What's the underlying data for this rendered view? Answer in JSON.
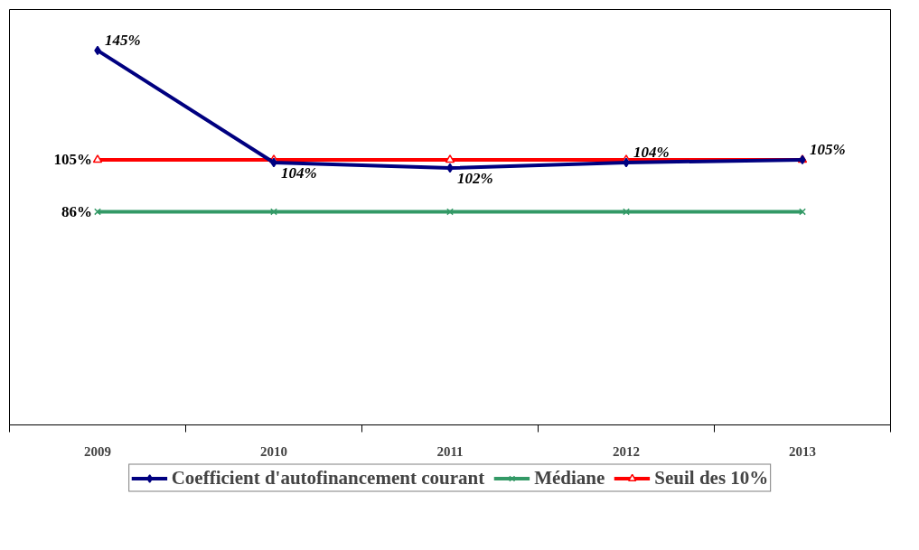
{
  "chart_data": {
    "type": "line",
    "categories": [
      "2009",
      "2010",
      "2011",
      "2012",
      "2013"
    ],
    "ylim": [
      8,
      160
    ],
    "tick_labels": "x",
    "grid": false,
    "legend": "bottom",
    "line_style": "solid",
    "series": [
      {
        "name": "Coefficient d'autofinancement courant",
        "color": "#000080",
        "marker": "diamond",
        "values": [
          145,
          104,
          102,
          104,
          105
        ],
        "value_labels": [
          "145%",
          "104%",
          "102%",
          "104%",
          "105%"
        ]
      },
      {
        "name": "Médiane",
        "color": "#339966",
        "marker": "cross",
        "values": [
          86,
          86,
          86,
          86,
          86
        ],
        "value_labels": [
          "86%",
          null,
          null,
          null,
          null
        ]
      },
      {
        "name": "Seuil des 10%",
        "color": "#ff0000",
        "marker": "triangle",
        "values": [
          105,
          105,
          105,
          105,
          105
        ],
        "value_labels": [
          "105%",
          null,
          null,
          null,
          null
        ]
      }
    ]
  }
}
